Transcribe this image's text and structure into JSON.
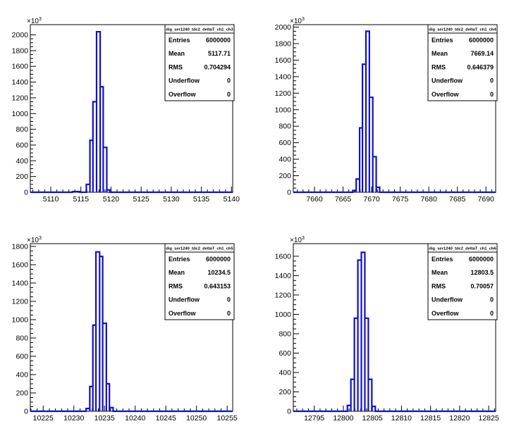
{
  "chart_data": [
    {
      "type": "histogram",
      "stats_title": "dig_ser1240_tdc2_deltaT_ch1_ch3",
      "stats": [
        {
          "label": "Entries",
          "value": "6000000"
        },
        {
          "label": "Mean",
          "value": "5117.71"
        },
        {
          "label": "RMS",
          "value": "0.704294"
        },
        {
          "label": "Underflow",
          "value": "0"
        },
        {
          "label": "Overflow",
          "value": "0"
        }
      ],
      "y_exponent_base": "×10",
      "y_exponent": "3",
      "xlim": [
        5106.6,
        5140.2
      ],
      "ylim": [
        0,
        2130
      ],
      "xticks": [
        5110,
        5115,
        5120,
        5125,
        5130,
        5135,
        5140
      ],
      "yticks": [
        0,
        200,
        400,
        600,
        800,
        1000,
        1200,
        1400,
        1600,
        1800,
        2000
      ],
      "bins": [
        {
          "x0": 5113.6,
          "x1": 5114.2,
          "y": 8
        },
        {
          "x0": 5114.2,
          "x1": 5114.8,
          "y": 8
        },
        {
          "x0": 5115.9,
          "x1": 5116.5,
          "y": 100
        },
        {
          "x0": 5116.5,
          "x1": 5117.0,
          "y": 660
        },
        {
          "x0": 5117.0,
          "x1": 5117.6,
          "y": 1150
        },
        {
          "x0": 5117.6,
          "x1": 5118.2,
          "y": 2040
        },
        {
          "x0": 5118.2,
          "x1": 5118.7,
          "y": 1340
        },
        {
          "x0": 5118.7,
          "x1": 5119.3,
          "y": 570
        },
        {
          "x0": 5119.3,
          "x1": 5119.8,
          "y": 30
        }
      ]
    },
    {
      "type": "histogram",
      "stats_title": "dig_ser1240_tdc2_deltaT_ch1_ch4",
      "stats": [
        {
          "label": "Entries",
          "value": "6000000"
        },
        {
          "label": "Mean",
          "value": "7669.14"
        },
        {
          "label": "RMS",
          "value": "0.646379"
        },
        {
          "label": "Underflow",
          "value": "0"
        },
        {
          "label": "Overflow",
          "value": "0"
        }
      ],
      "y_exponent_base": "×10",
      "y_exponent": "3",
      "xlim": [
        7656.3,
        7691.7
      ],
      "ylim": [
        0,
        2030
      ],
      "xticks": [
        7660,
        7665,
        7670,
        7675,
        7680,
        7685,
        7690
      ],
      "yticks": [
        0,
        200,
        400,
        600,
        800,
        1000,
        1200,
        1400,
        1600,
        1800,
        2000
      ],
      "bins": [
        {
          "x0": 7666.7,
          "x1": 7667.3,
          "y": 20
        },
        {
          "x0": 7667.3,
          "x1": 7667.9,
          "y": 160
        },
        {
          "x0": 7667.9,
          "x1": 7668.4,
          "y": 780
        },
        {
          "x0": 7668.4,
          "x1": 7669.0,
          "y": 1550
        },
        {
          "x0": 7669.0,
          "x1": 7669.6,
          "y": 1950
        },
        {
          "x0": 7669.6,
          "x1": 7670.2,
          "y": 1150
        },
        {
          "x0": 7670.2,
          "x1": 7670.8,
          "y": 430
        },
        {
          "x0": 7670.8,
          "x1": 7671.4,
          "y": 60
        }
      ]
    },
    {
      "type": "histogram",
      "stats_title": "dig_ser1240_tdc2_deltaT_ch1_ch5",
      "stats": [
        {
          "label": "Entries",
          "value": "6000000"
        },
        {
          "label": "Mean",
          "value": "10234.5"
        },
        {
          "label": "RMS",
          "value": "0.643153"
        },
        {
          "label": "Underflow",
          "value": "0"
        },
        {
          "label": "Overflow",
          "value": "0"
        }
      ],
      "y_exponent_base": "×10",
      "y_exponent": "3",
      "xlim": [
        10222.9,
        10255.9
      ],
      "ylim": [
        0,
        1830
      ],
      "xticks": [
        10225,
        10230,
        10235,
        10240,
        10245,
        10250,
        10255
      ],
      "yticks": [
        0,
        200,
        400,
        600,
        800,
        1000,
        1200,
        1400,
        1600,
        1800
      ],
      "bins": [
        {
          "x0": 10232.0,
          "x1": 10232.6,
          "y": 30
        },
        {
          "x0": 10232.6,
          "x1": 10233.1,
          "y": 270
        },
        {
          "x0": 10233.1,
          "x1": 10233.6,
          "y": 940
        },
        {
          "x0": 10233.6,
          "x1": 10234.2,
          "y": 1740
        },
        {
          "x0": 10234.2,
          "x1": 10234.7,
          "y": 1690
        },
        {
          "x0": 10234.7,
          "x1": 10235.3,
          "y": 960
        },
        {
          "x0": 10235.3,
          "x1": 10235.8,
          "y": 300
        },
        {
          "x0": 10235.8,
          "x1": 10236.4,
          "y": 40
        }
      ]
    },
    {
      "type": "histogram",
      "stats_title": "dig_ser1240_tdc2_deltaT_ch1_ch6",
      "stats": [
        {
          "label": "Entries",
          "value": "6000000"
        },
        {
          "label": "Mean",
          "value": "12803.5"
        },
        {
          "label": "RMS",
          "value": "0.70057"
        },
        {
          "label": "Underflow",
          "value": "0"
        },
        {
          "label": "Overflow",
          "value": "0"
        }
      ],
      "y_exponent_base": "×10",
      "y_exponent": "3",
      "xlim": [
        12791.4,
        12826.2
      ],
      "ylim": [
        0,
        1730
      ],
      "xticks": [
        12795,
        12800,
        12805,
        12810,
        12815,
        12820,
        12825
      ],
      "yticks": [
        0,
        200,
        400,
        600,
        800,
        1000,
        1200,
        1400,
        1600
      ],
      "bins": [
        {
          "x0": 12800.7,
          "x1": 12801.3,
          "y": 60
        },
        {
          "x0": 12801.3,
          "x1": 12801.9,
          "y": 330
        },
        {
          "x0": 12801.9,
          "x1": 12802.5,
          "y": 960
        },
        {
          "x0": 12802.5,
          "x1": 12803.1,
          "y": 1560
        },
        {
          "x0": 12803.1,
          "x1": 12803.7,
          "y": 1640
        },
        {
          "x0": 12803.7,
          "x1": 12804.3,
          "y": 960
        },
        {
          "x0": 12804.3,
          "x1": 12804.9,
          "y": 330
        },
        {
          "x0": 12804.9,
          "x1": 12805.5,
          "y": 50
        }
      ]
    }
  ]
}
